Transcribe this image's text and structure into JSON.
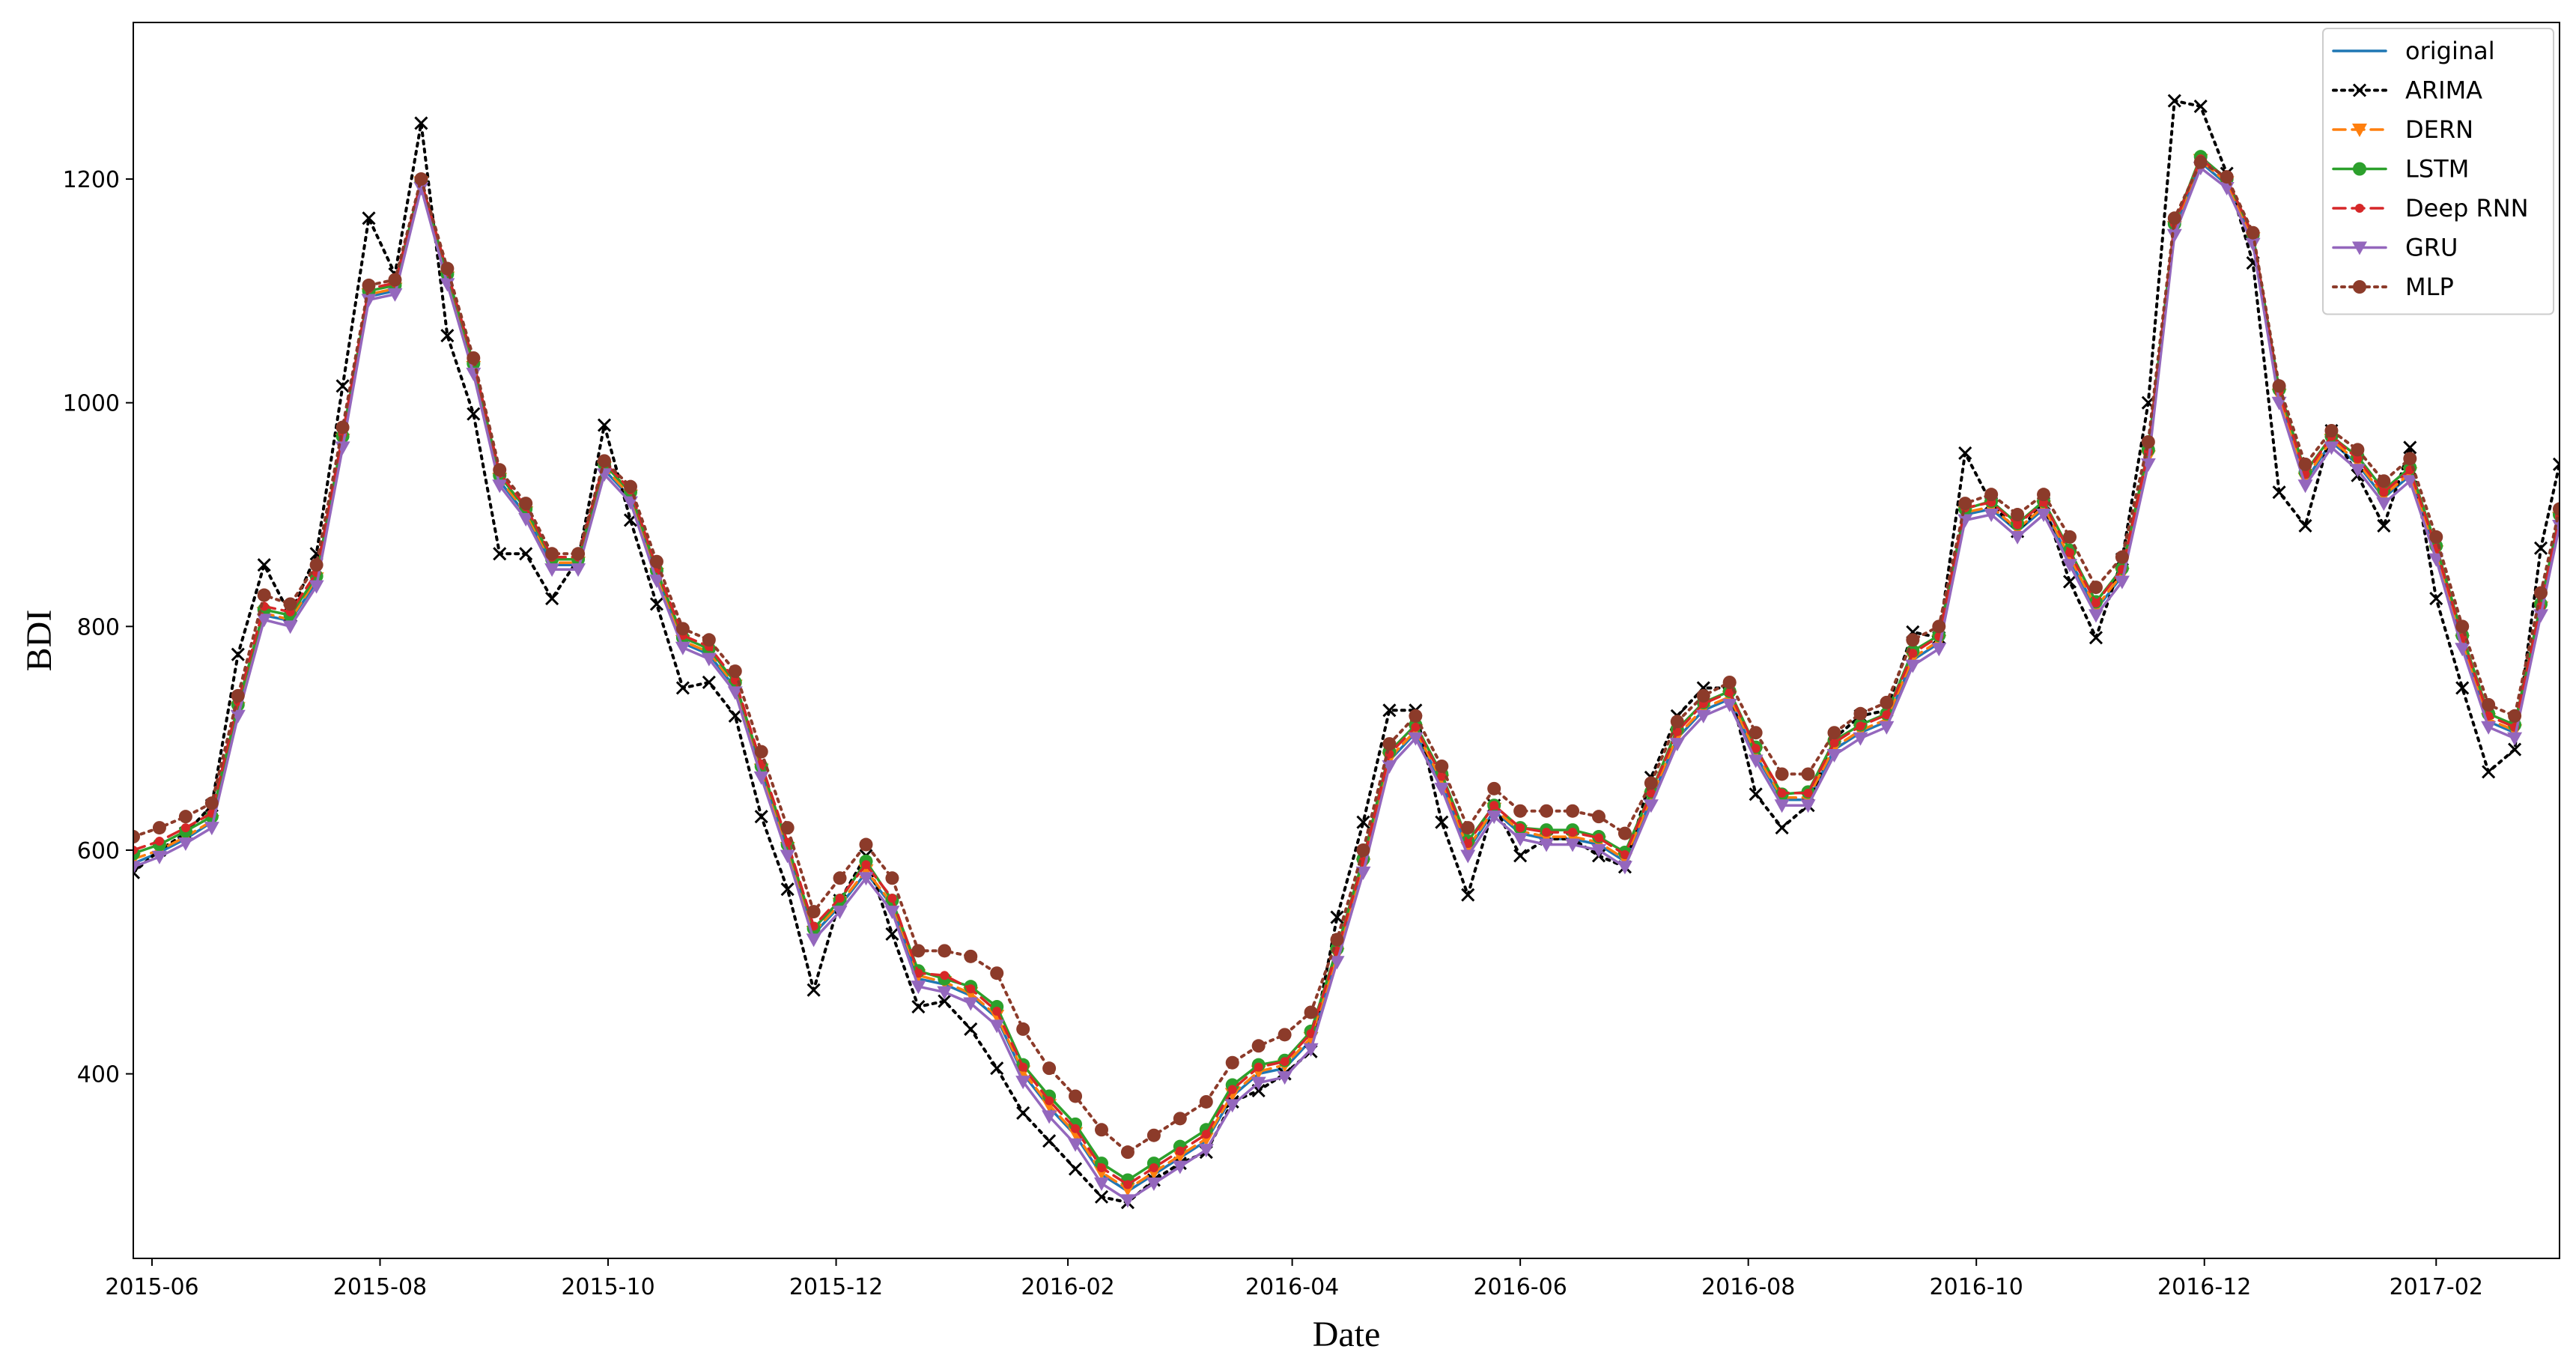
{
  "chart_data": {
    "type": "line",
    "xlabel": "Date",
    "ylabel": "BDI",
    "xlim": [
      "2015-05-27",
      "2017-03-06"
    ],
    "ylim": [
      235,
      1340
    ],
    "x_ticks": [
      "2015-06",
      "2015-08",
      "2015-10",
      "2015-12",
      "2016-02",
      "2016-04",
      "2016-06",
      "2016-08",
      "2016-10",
      "2016-12",
      "2017-02"
    ],
    "y_ticks": [
      400,
      600,
      800,
      1000,
      1200
    ],
    "legend_position": "top-right",
    "grid": false,
    "dates": [
      "2015-05-27",
      "2015-06-03",
      "2015-06-10",
      "2015-06-17",
      "2015-06-24",
      "2015-07-01",
      "2015-07-08",
      "2015-07-15",
      "2015-07-22",
      "2015-07-29",
      "2015-08-05",
      "2015-08-12",
      "2015-08-19",
      "2015-08-26",
      "2015-09-02",
      "2015-09-09",
      "2015-09-16",
      "2015-09-23",
      "2015-09-30",
      "2015-10-07",
      "2015-10-14",
      "2015-10-21",
      "2015-10-28",
      "2015-11-04",
      "2015-11-11",
      "2015-11-18",
      "2015-11-25",
      "2015-12-02",
      "2015-12-09",
      "2015-12-16",
      "2015-12-23",
      "2015-12-30",
      "2016-01-06",
      "2016-01-13",
      "2016-01-20",
      "2016-01-27",
      "2016-02-03",
      "2016-02-10",
      "2016-02-17",
      "2016-02-24",
      "2016-03-02",
      "2016-03-09",
      "2016-03-16",
      "2016-03-23",
      "2016-03-30",
      "2016-04-06",
      "2016-04-13",
      "2016-04-20",
      "2016-04-27",
      "2016-05-04",
      "2016-05-11",
      "2016-05-18",
      "2016-05-25",
      "2016-06-01",
      "2016-06-08",
      "2016-06-15",
      "2016-06-22",
      "2016-06-29",
      "2016-07-06",
      "2016-07-13",
      "2016-07-20",
      "2016-07-27",
      "2016-08-03",
      "2016-08-10",
      "2016-08-17",
      "2016-08-24",
      "2016-08-31",
      "2016-09-07",
      "2016-09-14",
      "2016-09-21",
      "2016-09-28",
      "2016-10-05",
      "2016-10-12",
      "2016-10-19",
      "2016-10-26",
      "2016-11-02",
      "2016-11-09",
      "2016-11-16",
      "2016-11-23",
      "2016-11-30",
      "2016-12-07",
      "2016-12-14",
      "2016-12-21",
      "2016-12-28",
      "2017-01-04",
      "2017-01-11",
      "2017-01-18",
      "2017-01-25",
      "2017-02-01",
      "2017-02-08",
      "2017-02-15",
      "2017-02-22",
      "2017-03-01",
      "2017-03-06"
    ],
    "series": [
      {
        "name": "original",
        "color": "#1f77b4",
        "linestyle": "solid",
        "marker": "none",
        "values": [
          588,
          598,
          610,
          625,
          725,
          810,
          805,
          840,
          965,
          1095,
          1100,
          1195,
          1110,
          1030,
          930,
          900,
          855,
          855,
          940,
          915,
          845,
          785,
          775,
          745,
          670,
          600,
          525,
          550,
          580,
          550,
          485,
          480,
          470,
          450,
          400,
          370,
          345,
          310,
          295,
          310,
          325,
          340,
          380,
          400,
          405,
          430,
          505,
          585,
          680,
          705,
          660,
          600,
          635,
          615,
          610,
          610,
          605,
          590,
          645,
          700,
          725,
          735,
          685,
          645,
          645,
          690,
          705,
          715,
          770,
          785,
          900,
          905,
          885,
          905,
          860,
          815,
          845,
          950,
          1155,
          1215,
          1195,
          1145,
          1005,
          930,
          965,
          945,
          915,
          935,
          865,
          785,
          715,
          705,
          815,
          895
        ]
      },
      {
        "name": "ARIMA",
        "color": "#000000",
        "linestyle": "dotted",
        "marker": "x",
        "values": [
          580,
          600,
          615,
          640,
          775,
          855,
          810,
          865,
          1015,
          1165,
          1115,
          1250,
          1060,
          990,
          865,
          865,
          825,
          860,
          980,
          895,
          820,
          745,
          750,
          720,
          630,
          565,
          475,
          555,
          595,
          525,
          460,
          465,
          440,
          405,
          365,
          340,
          315,
          290,
          285,
          305,
          320,
          330,
          375,
          385,
          400,
          420,
          540,
          625,
          725,
          725,
          625,
          560,
          640,
          595,
          610,
          610,
          595,
          585,
          665,
          720,
          745,
          745,
          650,
          620,
          640,
          700,
          720,
          725,
          795,
          790,
          955,
          910,
          885,
          910,
          840,
          790,
          860,
          1000,
          1270,
          1265,
          1205,
          1125,
          920,
          890,
          975,
          935,
          890,
          960,
          825,
          745,
          670,
          690,
          870,
          945
        ]
      },
      {
        "name": "DERN",
        "color": "#ff7f0e",
        "linestyle": "dashed",
        "marker": "triangle-down",
        "values": [
          592,
          600,
          612,
          626,
          727,
          812,
          806,
          843,
          967,
          1097,
          1102,
          1197,
          1112,
          1032,
          932,
          902,
          857,
          857,
          942,
          917,
          847,
          787,
          777,
          747,
          672,
          602,
          527,
          552,
          582,
          552,
          488,
          482,
          472,
          452,
          402,
          372,
          347,
          312,
          297,
          312,
          327,
          342,
          382,
          402,
          408,
          432,
          507,
          587,
          682,
          707,
          662,
          602,
          637,
          617,
          612,
          612,
          607,
          592,
          647,
          702,
          727,
          737,
          687,
          647,
          647,
          692,
          707,
          717,
          772,
          787,
          902,
          907,
          887,
          907,
          862,
          817,
          847,
          952,
          1157,
          1217,
          1197,
          1147,
          1007,
          932,
          967,
          947,
          917,
          937,
          867,
          787,
          717,
          707,
          817,
          897
        ]
      },
      {
        "name": "LSTM",
        "color": "#2ca02c",
        "linestyle": "solid",
        "marker": "circle",
        "values": [
          597,
          605,
          617,
          630,
          730,
          815,
          810,
          845,
          970,
          1100,
          1105,
          1198,
          1115,
          1035,
          935,
          905,
          860,
          860,
          945,
          920,
          850,
          790,
          780,
          750,
          675,
          605,
          530,
          555,
          590,
          555,
          492,
          485,
          478,
          460,
          408,
          380,
          355,
          320,
          305,
          320,
          335,
          350,
          390,
          408,
          412,
          438,
          512,
          592,
          688,
          712,
          668,
          608,
          640,
          620,
          618,
          618,
          612,
          598,
          652,
          708,
          732,
          742,
          692,
          650,
          652,
          698,
          712,
          722,
          778,
          792,
          905,
          912,
          892,
          912,
          868,
          822,
          852,
          958,
          1160,
          1220,
          1200,
          1150,
          1012,
          938,
          970,
          952,
          922,
          942,
          872,
          792,
          722,
          712,
          820,
          900
        ]
      },
      {
        "name": "Deep RNN",
        "color": "#d62728",
        "linestyle": "dashed",
        "marker": "circle-small",
        "values": [
          600,
          608,
          620,
          633,
          733,
          818,
          813,
          848,
          972,
          1102,
          1107,
          1198,
          1117,
          1037,
          937,
          907,
          862,
          862,
          947,
          922,
          852,
          792,
          782,
          752,
          677,
          607,
          532,
          557,
          587,
          557,
          490,
          488,
          476,
          456,
          406,
          376,
          351,
          316,
          301,
          316,
          331,
          346,
          386,
          406,
          411,
          436,
          510,
          590,
          686,
          710,
          666,
          606,
          640,
          620,
          616,
          616,
          611,
          596,
          651,
          706,
          731,
          741,
          691,
          651,
          651,
          696,
          711,
          721,
          776,
          791,
          906,
          911,
          891,
          911,
          866,
          821,
          851,
          956,
          1160,
          1218,
          1200,
          1150,
          1010,
          936,
          970,
          950,
          920,
          940,
          870,
          790,
          720,
          710,
          818,
          898
        ]
      },
      {
        "name": "GRU",
        "color": "#9467bd",
        "linestyle": "solid",
        "marker": "triangle-down",
        "values": [
          585,
          594,
          606,
          620,
          720,
          806,
          800,
          836,
          960,
          1092,
          1097,
          1192,
          1106,
          1026,
          926,
          896,
          851,
          851,
          936,
          911,
          841,
          781,
          771,
          741,
          665,
          595,
          520,
          545,
          575,
          545,
          478,
          473,
          463,
          443,
          393,
          362,
          337,
          302,
          287,
          302,
          317,
          332,
          372,
          392,
          397,
          422,
          500,
          580,
          675,
          700,
          655,
          595,
          630,
          610,
          605,
          605,
          600,
          585,
          640,
          695,
          720,
          730,
          680,
          640,
          640,
          685,
          700,
          710,
          765,
          780,
          895,
          900,
          880,
          900,
          855,
          810,
          840,
          945,
          1150,
          1210,
          1192,
          1142,
          1000,
          926,
          960,
          940,
          910,
          930,
          860,
          780,
          710,
          700,
          810,
          890
        ]
      },
      {
        "name": "MLP",
        "color": "#8c3b2a",
        "linestyle": "dotted",
        "marker": "circle",
        "values": [
          612,
          620,
          630,
          642,
          738,
          828,
          820,
          855,
          978,
          1105,
          1110,
          1200,
          1120,
          1040,
          940,
          910,
          865,
          865,
          948,
          925,
          858,
          798,
          788,
          760,
          688,
          620,
          545,
          575,
          605,
          575,
          510,
          510,
          505,
          490,
          440,
          405,
          380,
          350,
          330,
          345,
          360,
          375,
          410,
          425,
          435,
          455,
          520,
          600,
          695,
          720,
          675,
          620,
          655,
          635,
          635,
          635,
          630,
          615,
          660,
          715,
          738,
          750,
          705,
          668,
          668,
          705,
          722,
          732,
          788,
          800,
          910,
          918,
          900,
          918,
          880,
          835,
          862,
          965,
          1165,
          1215,
          1202,
          1152,
          1015,
          945,
          975,
          958,
          930,
          950,
          880,
          800,
          730,
          720,
          830,
          905
        ]
      }
    ]
  }
}
